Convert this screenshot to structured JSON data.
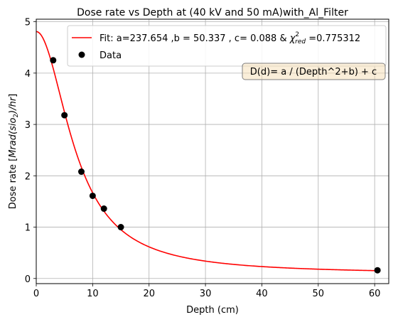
{
  "chart_data": {
    "type": "line",
    "title": "Dose rate vs Depth at  (40 kV and 50 mA)with_Al_Filter",
    "xlabel": "Depth (cm)",
    "ylabel_main": "Dose rate [",
    "ylabel_italic": "Mrad(sio",
    "ylabel_sub": "2",
    "ylabel_italic2": ")/hr",
    "ylabel_end": "]",
    "xlim": [
      0,
      62.5
    ],
    "ylim": [
      -0.1,
      5.05
    ],
    "x_ticks": [
      0,
      10,
      20,
      30,
      40,
      50,
      60
    ],
    "y_ticks": [
      0,
      1,
      2,
      3,
      4,
      5
    ],
    "grid": true,
    "legend_position": "top-right",
    "fit": {
      "model": "a / (x^2 + b) + c",
      "a": 237.654,
      "b": 50.337,
      "c": 0.088,
      "x_range": [
        0,
        60.5
      ],
      "color": "#ff0000",
      "legend_main": "Fit: a=237.654 ,b = 50.337 , c= 0.088 & ",
      "legend_chi": "χ",
      "legend_sup": "2",
      "legend_sub": "red",
      "legend_tail": " =0.775312"
    },
    "series": [
      {
        "name": "Data",
        "color": "#000000",
        "x": [
          3,
          5,
          8,
          10,
          12,
          15,
          60.5
        ],
        "y": [
          4.25,
          3.18,
          2.08,
          1.61,
          1.36,
          1.0,
          0.16
        ]
      }
    ],
    "annotation": "D(d)= a / (Depth^2+b) + c"
  }
}
